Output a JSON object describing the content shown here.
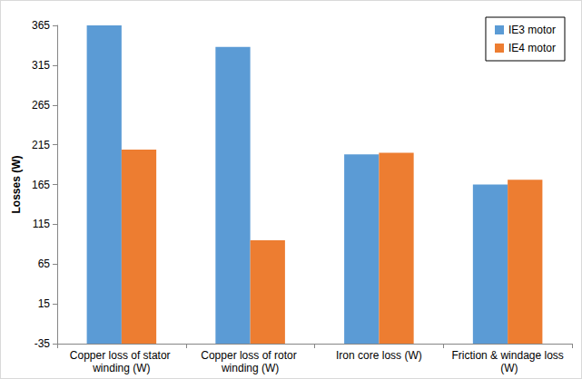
{
  "chart_data": {
    "type": "bar",
    "categories": [
      "Copper loss of stator winding (W)",
      "Copper loss of rotor winding (W)",
      "Iron core loss (W)",
      "Friction & windage loss (W)"
    ],
    "y_label": "Losses (W)",
    "series": [
      {
        "name": "IE3 motor",
        "color": "#5b9bd5",
        "values": [
          365,
          338,
          203,
          165
        ]
      },
      {
        "name": "IE4 motor",
        "color": "#ed7d31",
        "values": [
          209,
          95,
          205,
          171
        ]
      }
    ],
    "ylim": [
      -35,
      365
    ],
    "yticks": [
      -35,
      15,
      65,
      115,
      165,
      215,
      265,
      315,
      365
    ],
    "grid": false,
    "legend": "upper right"
  }
}
